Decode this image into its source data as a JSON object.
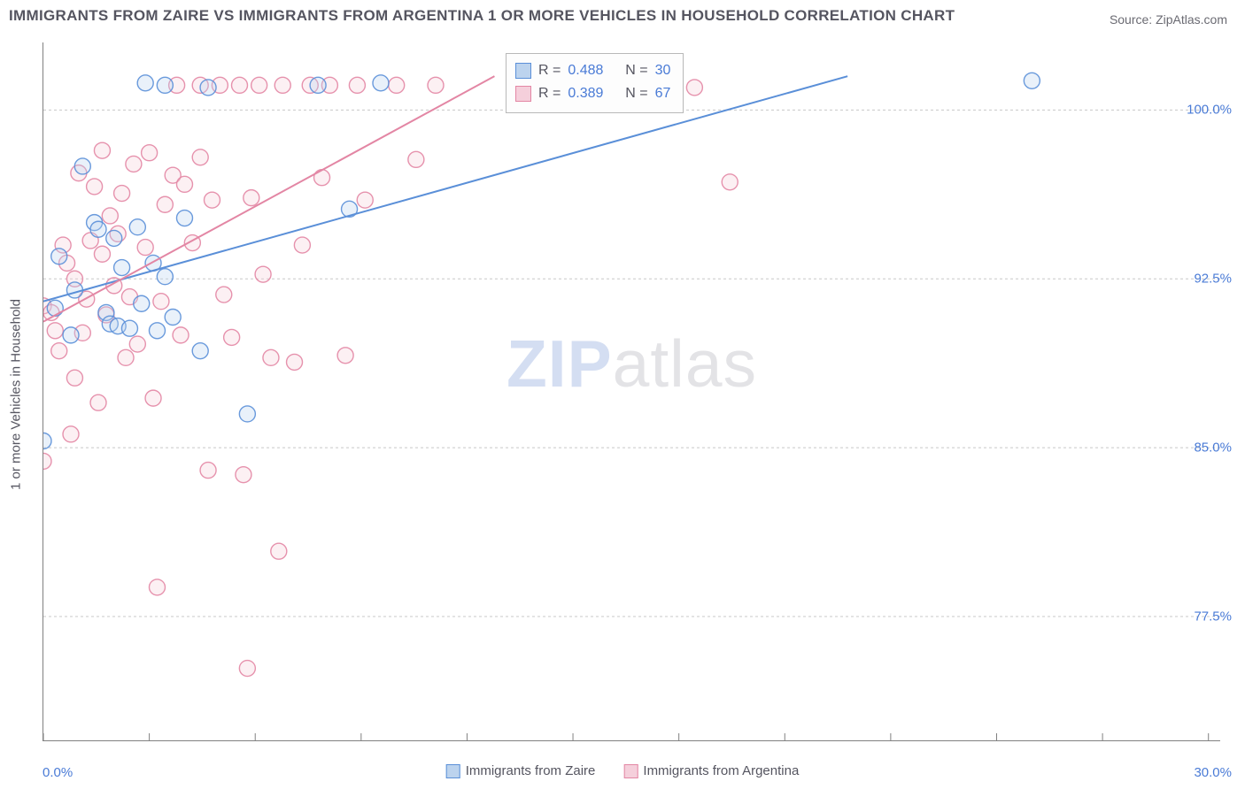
{
  "title": "IMMIGRANTS FROM ZAIRE VS IMMIGRANTS FROM ARGENTINA 1 OR MORE VEHICLES IN HOUSEHOLD CORRELATION CHART",
  "source": "Source: ZipAtlas.com",
  "y_axis_title": "1 or more Vehicles in Household",
  "watermark_zip": "ZIP",
  "watermark_atlas": "atlas",
  "chart": {
    "type": "scatter",
    "background_color": "#ffffff",
    "grid_color": "#c8c8c8",
    "axis_color": "#808080",
    "tick_label_color": "#4a7bd6",
    "text_color": "#555560",
    "marker_radius": 9,
    "marker_fill_opacity": 0.32,
    "marker_stroke_opacity": 0.9,
    "line_width": 2,
    "xlim": [
      0,
      30
    ],
    "ylim": [
      72,
      103
    ],
    "x_ticks": [
      0,
      2.7,
      5.4,
      8.1,
      10.8,
      13.5,
      16.2,
      18.9,
      21.6,
      24.3,
      27.0,
      29.7
    ],
    "x_tick_labels": {
      "0": "0.0%",
      "30": "30.0%"
    },
    "y_gridlines": [
      77.5,
      85.0,
      92.5,
      100.0
    ],
    "y_tick_labels": [
      "77.5%",
      "85.0%",
      "92.5%",
      "100.0%"
    ],
    "series": [
      {
        "name": "Immigrants from Zaire",
        "color": "#5a8fd8",
        "fill": "#bcd3ee",
        "R": "0.488",
        "N": "30",
        "regression": {
          "x1": 0,
          "y1": 91.5,
          "x2": 20.5,
          "y2": 101.5
        },
        "points": [
          [
            0.0,
            85.3
          ],
          [
            0.3,
            91.2
          ],
          [
            0.4,
            93.5
          ],
          [
            0.7,
            90.0
          ],
          [
            0.8,
            92.0
          ],
          [
            1.0,
            97.5
          ],
          [
            1.3,
            95.0
          ],
          [
            1.4,
            94.7
          ],
          [
            1.6,
            91.0
          ],
          [
            1.7,
            90.5
          ],
          [
            1.8,
            94.3
          ],
          [
            1.9,
            90.4
          ],
          [
            2.0,
            93.0
          ],
          [
            2.2,
            90.3
          ],
          [
            2.4,
            94.8
          ],
          [
            2.5,
            91.4
          ],
          [
            2.6,
            101.2
          ],
          [
            2.8,
            93.2
          ],
          [
            2.9,
            90.2
          ],
          [
            3.1,
            92.6
          ],
          [
            3.1,
            101.1
          ],
          [
            3.3,
            90.8
          ],
          [
            3.6,
            95.2
          ],
          [
            4.0,
            89.3
          ],
          [
            4.2,
            101.0
          ],
          [
            5.2,
            86.5
          ],
          [
            7.0,
            101.1
          ],
          [
            7.8,
            95.6
          ],
          [
            8.6,
            101.2
          ],
          [
            25.2,
            101.3
          ]
        ]
      },
      {
        "name": "Immigrants from Argentina",
        "color": "#e386a4",
        "fill": "#f5cfdb",
        "R": "0.389",
        "N": "67",
        "regression": {
          "x1": 0,
          "y1": 90.6,
          "x2": 11.5,
          "y2": 101.5
        },
        "points": [
          [
            0.0,
            91.3
          ],
          [
            0.0,
            84.4
          ],
          [
            0.2,
            91.0
          ],
          [
            0.3,
            90.2
          ],
          [
            0.4,
            89.3
          ],
          [
            0.5,
            94.0
          ],
          [
            0.6,
            93.2
          ],
          [
            0.7,
            85.6
          ],
          [
            0.8,
            92.5
          ],
          [
            0.8,
            88.1
          ],
          [
            0.9,
            97.2
          ],
          [
            1.0,
            90.1
          ],
          [
            1.1,
            91.6
          ],
          [
            1.2,
            94.2
          ],
          [
            1.3,
            96.6
          ],
          [
            1.4,
            87.0
          ],
          [
            1.5,
            93.6
          ],
          [
            1.5,
            98.2
          ],
          [
            1.6,
            90.9
          ],
          [
            1.7,
            95.3
          ],
          [
            1.8,
            92.2
          ],
          [
            1.9,
            94.5
          ],
          [
            2.0,
            96.3
          ],
          [
            2.1,
            89.0
          ],
          [
            2.2,
            91.7
          ],
          [
            2.3,
            97.6
          ],
          [
            2.4,
            89.6
          ],
          [
            2.6,
            93.9
          ],
          [
            2.7,
            98.1
          ],
          [
            2.8,
            87.2
          ],
          [
            2.9,
            78.8
          ],
          [
            3.0,
            91.5
          ],
          [
            3.1,
            95.8
          ],
          [
            3.3,
            97.1
          ],
          [
            3.4,
            101.1
          ],
          [
            3.5,
            90.0
          ],
          [
            3.6,
            96.7
          ],
          [
            3.8,
            94.1
          ],
          [
            4.0,
            97.9
          ],
          [
            4.0,
            101.1
          ],
          [
            4.2,
            84.0
          ],
          [
            4.3,
            96.0
          ],
          [
            4.5,
            101.1
          ],
          [
            4.6,
            91.8
          ],
          [
            4.8,
            89.9
          ],
          [
            5.0,
            101.1
          ],
          [
            5.1,
            83.8
          ],
          [
            5.2,
            75.2
          ],
          [
            5.3,
            96.1
          ],
          [
            5.5,
            101.1
          ],
          [
            5.6,
            92.7
          ],
          [
            5.8,
            89.0
          ],
          [
            6.0,
            80.4
          ],
          [
            6.1,
            101.1
          ],
          [
            6.4,
            88.8
          ],
          [
            6.6,
            94.0
          ],
          [
            6.8,
            101.1
          ],
          [
            7.1,
            97.0
          ],
          [
            7.3,
            101.1
          ],
          [
            7.7,
            89.1
          ],
          [
            8.0,
            101.1
          ],
          [
            8.2,
            96.0
          ],
          [
            9.0,
            101.1
          ],
          [
            9.5,
            97.8
          ],
          [
            10.0,
            101.1
          ],
          [
            16.6,
            101.0
          ],
          [
            17.5,
            96.8
          ]
        ]
      }
    ],
    "legend_labels": {
      "series1": "Immigrants from Zaire",
      "series2": "Immigrants from Argentina"
    },
    "corr_box": {
      "r_label": "R =",
      "n_label": "N ="
    }
  }
}
